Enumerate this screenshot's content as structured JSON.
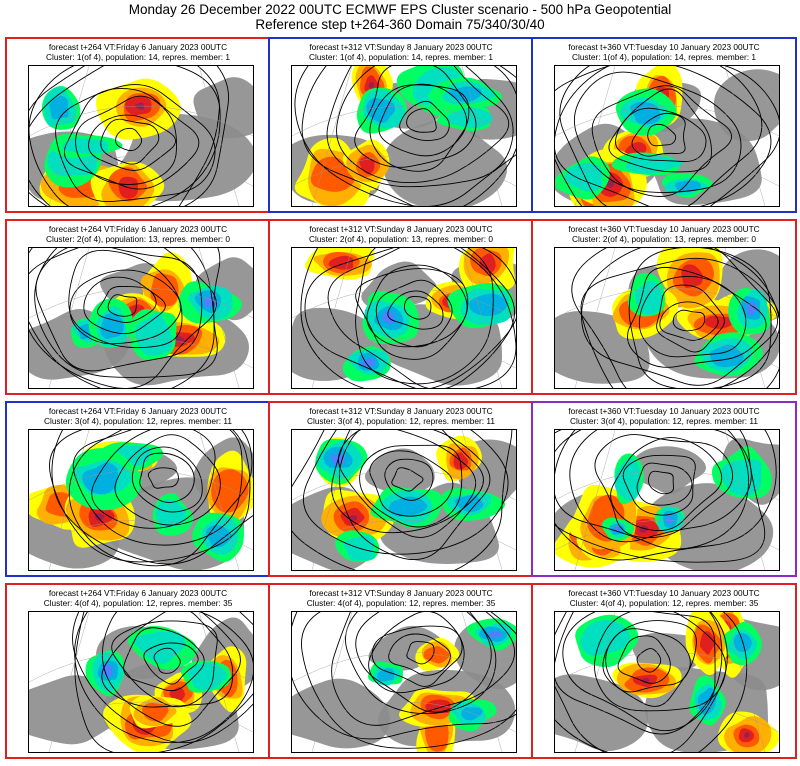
{
  "header": {
    "title_line1": "Monday 26 December 2022 00UTC ECMWF EPS Cluster scenario - 500 hPa Geopotential",
    "title_line2": "Reference step t+264-360 Domain 75/340/30/40"
  },
  "colors": {
    "red_frame": "#e02020",
    "blue_frame": "#2030c8",
    "purple_frame": "#8a2cc0",
    "land": "#8c8c8c",
    "pos_1": "#ffff00",
    "pos_2": "#ffb000",
    "pos_3": "#ff5a00",
    "pos_4": "#e02020",
    "pos_5": "#9a2050",
    "pos_6": "#6a1030",
    "neg_1": "#00ff60",
    "neg_2": "#00e0c0",
    "neg_3": "#00b0e0",
    "neg_4": "#5080ff",
    "neg_5": "#5050d0",
    "contour": "#000000"
  },
  "panels": [
    {
      "frame": "red",
      "forecast_line": "forecast t+264 VT:Friday 6 January 2023 00UTC",
      "cluster_line": "Cluster: 1(of 4), population: 14, repres. member: 1"
    },
    {
      "frame": "blue",
      "forecast_line": "forecast t+312 VT:Sunday 8 January 2023 00UTC",
      "cluster_line": "Cluster: 1(of 4), population: 14, repres. member: 1"
    },
    {
      "frame": "blue",
      "forecast_line": "forecast t+360 VT:Tuesday 10 January 2023 00UTC",
      "cluster_line": "Cluster: 1(of 4), population: 14, repres. member: 1"
    },
    {
      "frame": "red",
      "forecast_line": "forecast t+264 VT:Friday 6 January 2023 00UTC",
      "cluster_line": "Cluster: 2(of 4), population: 13, repres. member: 0"
    },
    {
      "frame": "red",
      "forecast_line": "forecast t+312 VT:Sunday 8 January 2023 00UTC",
      "cluster_line": "Cluster: 2(of 4), population: 13, repres. member: 0"
    },
    {
      "frame": "red",
      "forecast_line": "forecast t+360 VT:Tuesday 10 January 2023 00UTC",
      "cluster_line": "Cluster: 2(of 4), population: 13, repres. member: 0"
    },
    {
      "frame": "blue",
      "forecast_line": "forecast t+264 VT:Friday 6 January 2023 00UTC",
      "cluster_line": "Cluster: 3(of 4), population: 12, repres. member: 11"
    },
    {
      "frame": "red",
      "forecast_line": "forecast t+312 VT:Sunday 8 January 2023 00UTC",
      "cluster_line": "Cluster: 3(of 4), population: 12, repres. member: 11"
    },
    {
      "frame": "purple",
      "forecast_line": "forecast t+360 VT:Tuesday 10 January 2023 00UTC",
      "cluster_line": "Cluster: 3(of 4), population: 12, repres. member: 11"
    },
    {
      "frame": "red",
      "forecast_line": "forecast t+264 VT:Friday 6 January 2023 00UTC",
      "cluster_line": "Cluster: 4(of 4), population: 12, repres. member: 35"
    },
    {
      "frame": "red",
      "forecast_line": "forecast t+312 VT:Sunday 8 January 2023 00UTC",
      "cluster_line": "Cluster: 4(of 4), population: 12, repres. member: 35"
    },
    {
      "frame": "red",
      "forecast_line": "forecast t+360 VT:Tuesday 10 January 2023 00UTC",
      "cluster_line": "Cluster: 4(of 4), population: 12, repres. member: 35"
    }
  ]
}
